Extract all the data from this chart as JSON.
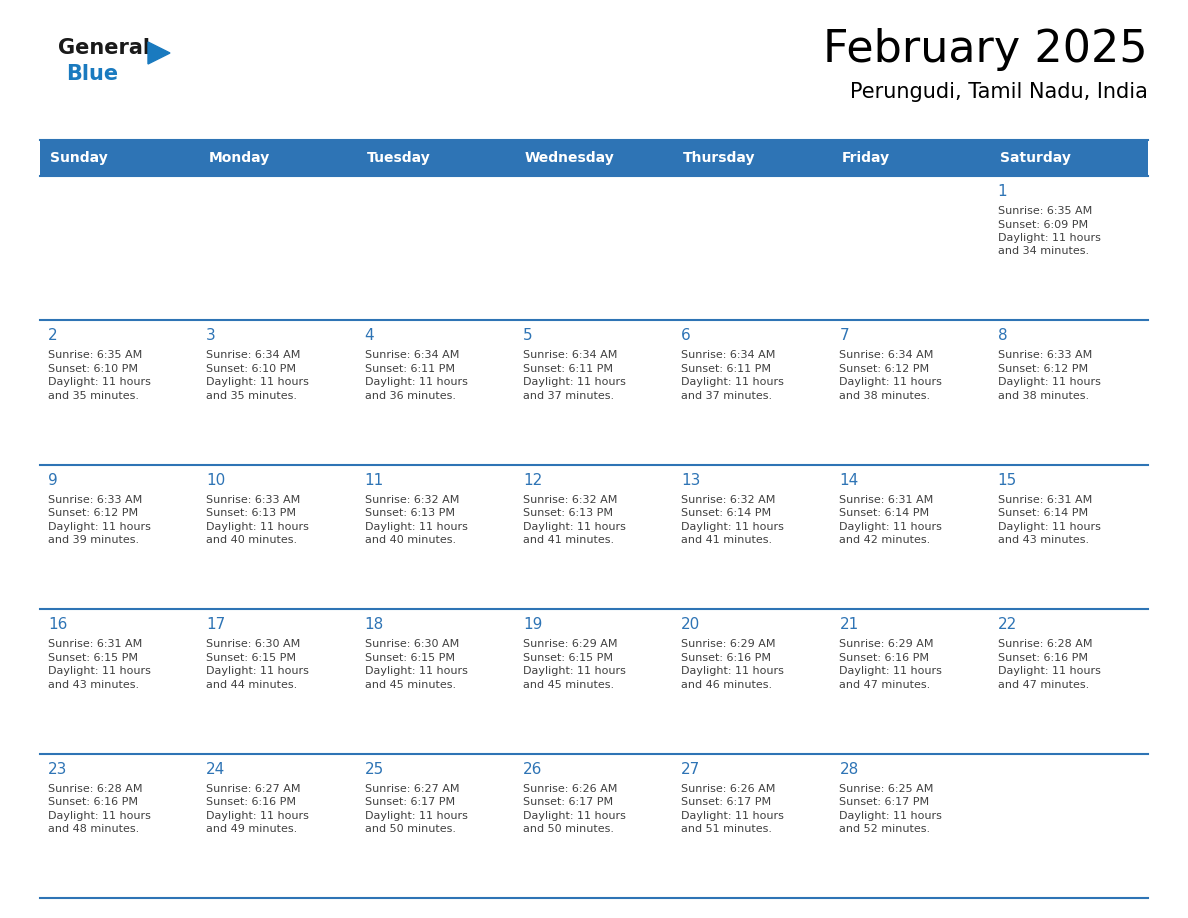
{
  "title": "February 2025",
  "subtitle": "Perungudi, Tamil Nadu, India",
  "header_bg": "#2E74B5",
  "header_text_color": "#FFFFFF",
  "border_color": "#2E74B5",
  "day_number_color": "#2E74B5",
  "info_text_color": "#404040",
  "days_of_week": [
    "Sunday",
    "Monday",
    "Tuesday",
    "Wednesday",
    "Thursday",
    "Friday",
    "Saturday"
  ],
  "calendar": [
    [
      {
        "day": null,
        "sunrise": null,
        "sunset": null,
        "daylight": null
      },
      {
        "day": null,
        "sunrise": null,
        "sunset": null,
        "daylight": null
      },
      {
        "day": null,
        "sunrise": null,
        "sunset": null,
        "daylight": null
      },
      {
        "day": null,
        "sunrise": null,
        "sunset": null,
        "daylight": null
      },
      {
        "day": null,
        "sunrise": null,
        "sunset": null,
        "daylight": null
      },
      {
        "day": null,
        "sunrise": null,
        "sunset": null,
        "daylight": null
      },
      {
        "day": 1,
        "sunrise": "6:35 AM",
        "sunset": "6:09 PM",
        "daylight": "11 hours\nand 34 minutes."
      }
    ],
    [
      {
        "day": 2,
        "sunrise": "6:35 AM",
        "sunset": "6:10 PM",
        "daylight": "11 hours\nand 35 minutes."
      },
      {
        "day": 3,
        "sunrise": "6:34 AM",
        "sunset": "6:10 PM",
        "daylight": "11 hours\nand 35 minutes."
      },
      {
        "day": 4,
        "sunrise": "6:34 AM",
        "sunset": "6:11 PM",
        "daylight": "11 hours\nand 36 minutes."
      },
      {
        "day": 5,
        "sunrise": "6:34 AM",
        "sunset": "6:11 PM",
        "daylight": "11 hours\nand 37 minutes."
      },
      {
        "day": 6,
        "sunrise": "6:34 AM",
        "sunset": "6:11 PM",
        "daylight": "11 hours\nand 37 minutes."
      },
      {
        "day": 7,
        "sunrise": "6:34 AM",
        "sunset": "6:12 PM",
        "daylight": "11 hours\nand 38 minutes."
      },
      {
        "day": 8,
        "sunrise": "6:33 AM",
        "sunset": "6:12 PM",
        "daylight": "11 hours\nand 38 minutes."
      }
    ],
    [
      {
        "day": 9,
        "sunrise": "6:33 AM",
        "sunset": "6:12 PM",
        "daylight": "11 hours\nand 39 minutes."
      },
      {
        "day": 10,
        "sunrise": "6:33 AM",
        "sunset": "6:13 PM",
        "daylight": "11 hours\nand 40 minutes."
      },
      {
        "day": 11,
        "sunrise": "6:32 AM",
        "sunset": "6:13 PM",
        "daylight": "11 hours\nand 40 minutes."
      },
      {
        "day": 12,
        "sunrise": "6:32 AM",
        "sunset": "6:13 PM",
        "daylight": "11 hours\nand 41 minutes."
      },
      {
        "day": 13,
        "sunrise": "6:32 AM",
        "sunset": "6:14 PM",
        "daylight": "11 hours\nand 41 minutes."
      },
      {
        "day": 14,
        "sunrise": "6:31 AM",
        "sunset": "6:14 PM",
        "daylight": "11 hours\nand 42 minutes."
      },
      {
        "day": 15,
        "sunrise": "6:31 AM",
        "sunset": "6:14 PM",
        "daylight": "11 hours\nand 43 minutes."
      }
    ],
    [
      {
        "day": 16,
        "sunrise": "6:31 AM",
        "sunset": "6:15 PM",
        "daylight": "11 hours\nand 43 minutes."
      },
      {
        "day": 17,
        "sunrise": "6:30 AM",
        "sunset": "6:15 PM",
        "daylight": "11 hours\nand 44 minutes."
      },
      {
        "day": 18,
        "sunrise": "6:30 AM",
        "sunset": "6:15 PM",
        "daylight": "11 hours\nand 45 minutes."
      },
      {
        "day": 19,
        "sunrise": "6:29 AM",
        "sunset": "6:15 PM",
        "daylight": "11 hours\nand 45 minutes."
      },
      {
        "day": 20,
        "sunrise": "6:29 AM",
        "sunset": "6:16 PM",
        "daylight": "11 hours\nand 46 minutes."
      },
      {
        "day": 21,
        "sunrise": "6:29 AM",
        "sunset": "6:16 PM",
        "daylight": "11 hours\nand 47 minutes."
      },
      {
        "day": 22,
        "sunrise": "6:28 AM",
        "sunset": "6:16 PM",
        "daylight": "11 hours\nand 47 minutes."
      }
    ],
    [
      {
        "day": 23,
        "sunrise": "6:28 AM",
        "sunset": "6:16 PM",
        "daylight": "11 hours\nand 48 minutes."
      },
      {
        "day": 24,
        "sunrise": "6:27 AM",
        "sunset": "6:16 PM",
        "daylight": "11 hours\nand 49 minutes."
      },
      {
        "day": 25,
        "sunrise": "6:27 AM",
        "sunset": "6:17 PM",
        "daylight": "11 hours\nand 50 minutes."
      },
      {
        "day": 26,
        "sunrise": "6:26 AM",
        "sunset": "6:17 PM",
        "daylight": "11 hours\nand 50 minutes."
      },
      {
        "day": 27,
        "sunrise": "6:26 AM",
        "sunset": "6:17 PM",
        "daylight": "11 hours\nand 51 minutes."
      },
      {
        "day": 28,
        "sunrise": "6:25 AM",
        "sunset": "6:17 PM",
        "daylight": "11 hours\nand 52 minutes."
      },
      {
        "day": null,
        "sunrise": null,
        "sunset": null,
        "daylight": null
      }
    ]
  ],
  "logo_color_general": "#1a1a1a",
  "logo_color_blue": "#1a7abf",
  "logo_triangle_color": "#1a7abf",
  "title_fontsize": 32,
  "subtitle_fontsize": 15,
  "header_fontsize": 10,
  "day_number_fontsize": 11,
  "cell_text_fontsize": 8
}
